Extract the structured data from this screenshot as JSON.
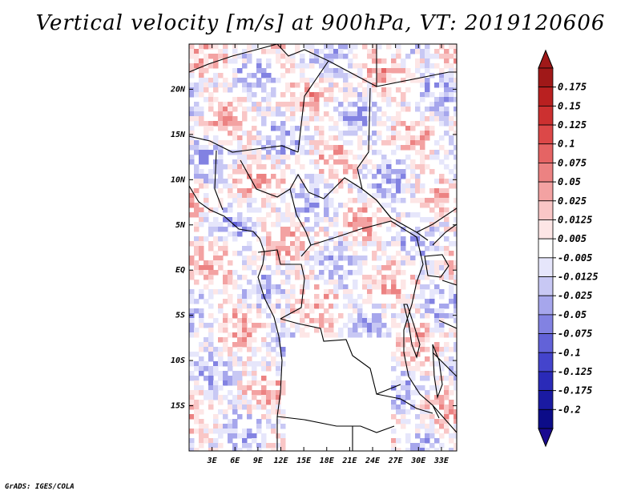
{
  "title": "Vertical velocity [m/s] at 900hPa, VT: 2019120606",
  "credit": "GrADS: IGES/COLA",
  "map": {
    "lon_range": [
      0,
      35
    ],
    "lat_range": [
      -20,
      25
    ],
    "lat_labels": [
      "20N",
      "15N",
      "10N",
      "5N",
      "EQ",
      "5S",
      "10S",
      "15S"
    ],
    "lat_values": [
      20,
      15,
      10,
      5,
      0,
      -5,
      -10,
      -15
    ],
    "lon_labels": [
      "3E",
      "6E",
      "9E",
      "12E",
      "15E",
      "18E",
      "21E",
      "24E",
      "27E",
      "30E",
      "33E"
    ],
    "lon_values": [
      3,
      6,
      9,
      12,
      15,
      18,
      21,
      24,
      27,
      30,
      33
    ]
  },
  "colorbar": {
    "labels": [
      "0.175",
      "0.15",
      "0.125",
      "0.1",
      "0.075",
      "0.05",
      "0.025",
      "0.0125",
      "0.005",
      "-0.005",
      "-0.0125",
      "-0.025",
      "-0.05",
      "-0.075",
      "-0.1",
      "-0.125",
      "-0.175",
      "-0.2"
    ],
    "colors": [
      "#a01818",
      "#b92020",
      "#cc3030",
      "#dc4848",
      "#e56464",
      "#ec8282",
      "#f3a2a2",
      "#f9c6c6",
      "#fde6e6",
      "#ffffff",
      "#e6e6fb",
      "#c8c8f4",
      "#a6a6ec",
      "#8282e2",
      "#6262d8",
      "#4444cc",
      "#2a2ab8",
      "#1a1aa2",
      "#0c0c88"
    ],
    "top_arrow_color": "#a01818",
    "bottom_arrow_color": "#1a0a90"
  }
}
